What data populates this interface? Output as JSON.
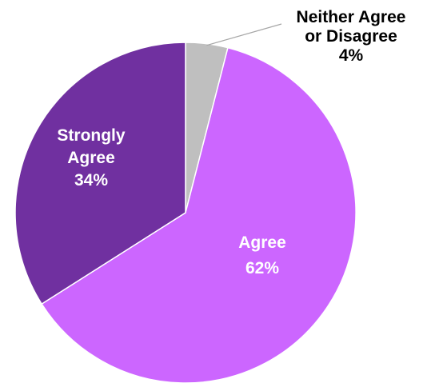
{
  "chart_data": {
    "type": "pie",
    "title": "",
    "slices": [
      {
        "name": "Neither Agree or Disagree",
        "label_lines": [
          "Neither Agree",
          "or Disagree"
        ],
        "value": 4,
        "percent_label": "4%",
        "color": "#bfbfbf",
        "label_color": "#000000"
      },
      {
        "name": "Agree",
        "label_lines": [
          "Agree"
        ],
        "value": 62,
        "percent_label": "62%",
        "color": "#cc66ff",
        "label_color": "#ffffff"
      },
      {
        "name": "Strongly Agree",
        "label_lines": [
          "Strongly",
          "Agree"
        ],
        "value": 34,
        "percent_label": "34%",
        "color": "#7030a0",
        "label_color": "#ffffff"
      }
    ],
    "legend": "none"
  }
}
